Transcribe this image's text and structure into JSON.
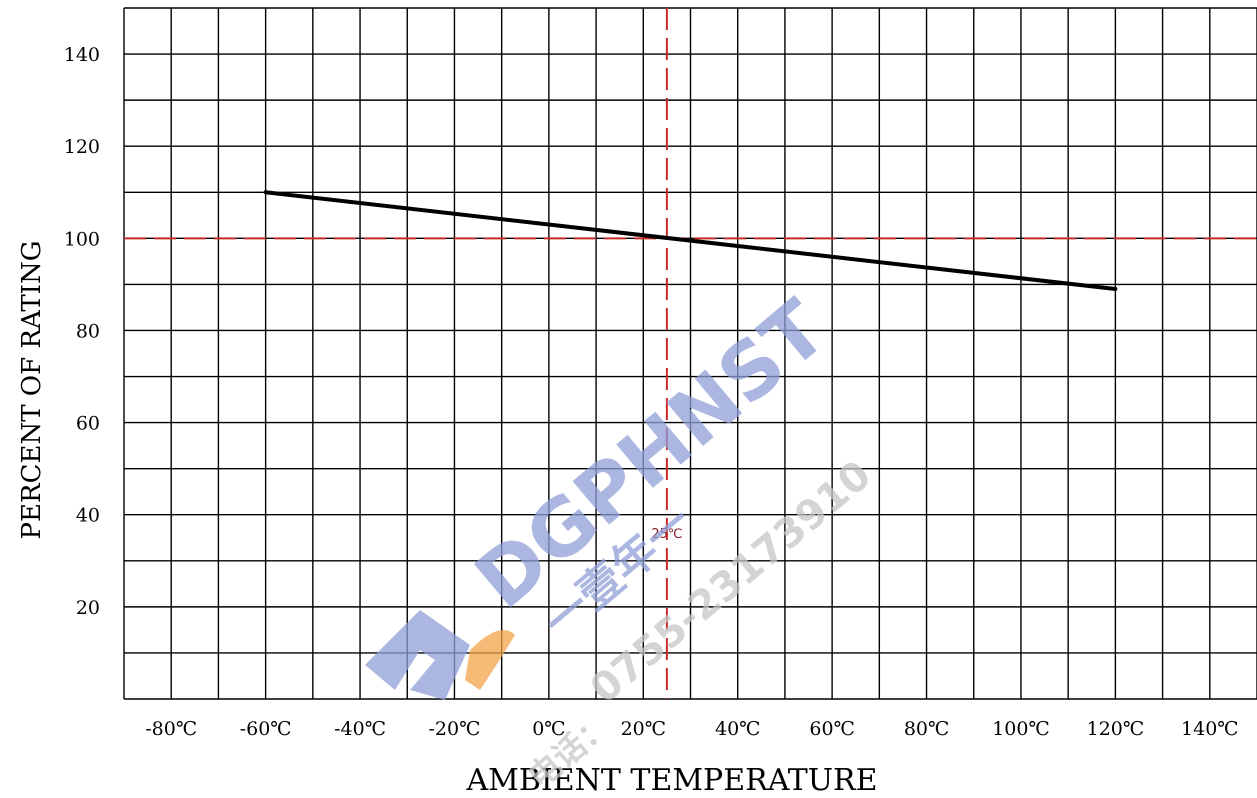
{
  "chart_data": {
    "type": "line",
    "title": "",
    "xlabel": "AMBIENT TEMPERATURE",
    "ylabel": "PERCENT OF RATING",
    "xlim": [
      -90,
      150
    ],
    "ylim": [
      0,
      150
    ],
    "x_ticks": [
      -80,
      -60,
      -40,
      -20,
      0,
      20,
      40,
      60,
      80,
      100,
      120,
      140
    ],
    "x_tick_labels": [
      "-80℃",
      "-60℃",
      "-40℃",
      "-20℃",
      "0℃",
      "20℃",
      "40℃",
      "60℃",
      "80℃",
      "100℃",
      "120℃",
      "140℃"
    ],
    "y_ticks": [
      20,
      40,
      60,
      80,
      100,
      120,
      140
    ],
    "y_tick_labels": [
      "20",
      "40",
      "60",
      "80",
      "100",
      "120",
      "140"
    ],
    "grid": true,
    "series": [
      {
        "x": [
          -60,
          120
        ],
        "y": [
          110,
          89
        ],
        "color": "#000000"
      }
    ],
    "reference_lines": [
      {
        "axis": "x",
        "value": 25,
        "label": "25℃",
        "color": "#cc2a2a"
      },
      {
        "axis": "y",
        "value": 100,
        "label": "",
        "color": "#cc2a2a"
      }
    ]
  },
  "watermark": {
    "brand": "DGPHNST",
    "cn_text": "一壹年一",
    "phone": "0755-23173910",
    "cn_prefix": "电话：",
    "colors": {
      "blue": "#8fa0d8",
      "orange": "#f4a64a"
    }
  }
}
